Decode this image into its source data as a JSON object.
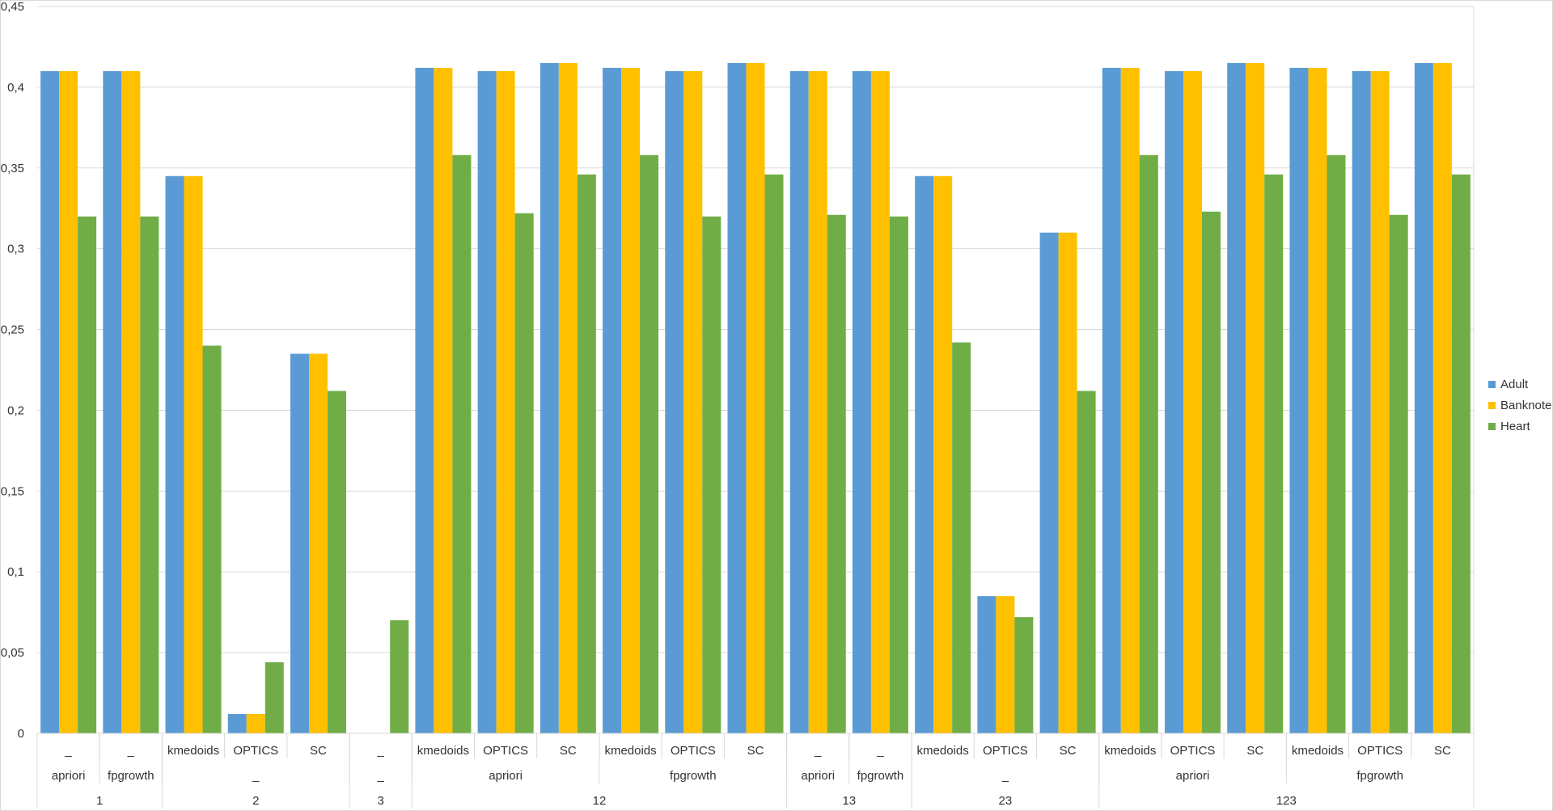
{
  "colors": {
    "Adult": "#5b9bd5",
    "Banknote": "#ffc000",
    "Heart": "#70ad47",
    "grid": "#d9d9d9",
    "text": "#333333"
  },
  "chart_data": {
    "type": "bar",
    "ylim": [
      0,
      0.45
    ],
    "y_ticks": [
      "0",
      "0,05",
      "0,1",
      "0,15",
      "0,2",
      "0,25",
      "0,3",
      "0,35",
      "0,4",
      "0,45"
    ],
    "grid": true,
    "legend_position": "right",
    "categories": [
      "1 | apriori | _",
      "1 | fpgrowth | _",
      "2 | _ | kmedoids",
      "2 | _ | OPTICS",
      "2 | _ | SC",
      "3 | _ | _",
      "12 | apriori | kmedoids",
      "12 | apriori | OPTICS",
      "12 | apriori | SC",
      "12 | fpgrowth | kmedoids",
      "12 | fpgrowth | OPTICS",
      "12 | fpgrowth | SC",
      "13 | apriori | _",
      "13 | fpgrowth | _",
      "23 | _ | kmedoids",
      "23 | _ | OPTICS",
      "23 | _ | SC",
      "123 | apriori | kmedoids",
      "123 | apriori | OPTICS",
      "123 | apriori | SC",
      "123 | fpgrowth | kmedoids",
      "123 | fpgrowth | OPTICS",
      "123 | fpgrowth | SC"
    ],
    "level1_labels": [
      "_",
      "_",
      "kmedoids",
      "OPTICS",
      "SC",
      "_",
      "kmedoids",
      "OPTICS",
      "SC",
      "kmedoids",
      "OPTICS",
      "SC",
      "_",
      "_",
      "kmedoids",
      "OPTICS",
      "SC",
      "kmedoids",
      "OPTICS",
      "SC",
      "kmedoids",
      "OPTICS",
      "SC"
    ],
    "level2_groups": [
      {
        "label": "apriori",
        "start": 0,
        "end": 0
      },
      {
        "label": "fpgrowth",
        "start": 1,
        "end": 1
      },
      {
        "label": "_",
        "start": 2,
        "end": 4
      },
      {
        "label": "_",
        "start": 5,
        "end": 5
      },
      {
        "label": "apriori",
        "start": 6,
        "end": 8
      },
      {
        "label": "fpgrowth",
        "start": 9,
        "end": 11
      },
      {
        "label": "apriori",
        "start": 12,
        "end": 12
      },
      {
        "label": "fpgrowth",
        "start": 13,
        "end": 13
      },
      {
        "label": "_",
        "start": 14,
        "end": 16
      },
      {
        "label": "apriori",
        "start": 17,
        "end": 19
      },
      {
        "label": "fpgrowth",
        "start": 20,
        "end": 22
      }
    ],
    "level3_groups": [
      {
        "label": "1",
        "start": 0,
        "end": 1
      },
      {
        "label": "2",
        "start": 2,
        "end": 4
      },
      {
        "label": "3",
        "start": 5,
        "end": 5
      },
      {
        "label": "12",
        "start": 6,
        "end": 11
      },
      {
        "label": "13",
        "start": 12,
        "end": 13
      },
      {
        "label": "23",
        "start": 14,
        "end": 16
      },
      {
        "label": "123",
        "start": 17,
        "end": 22
      }
    ],
    "series": [
      {
        "name": "Adult",
        "values": [
          0.41,
          0.41,
          0.345,
          0.012,
          0.235,
          0,
          0.412,
          0.41,
          0.415,
          0.412,
          0.41,
          0.415,
          0.41,
          0.41,
          0.345,
          0.085,
          0.31,
          0.412,
          0.41,
          0.415,
          0.412,
          0.41,
          0.415
        ]
      },
      {
        "name": "Banknote",
        "values": [
          0.41,
          0.41,
          0.345,
          0.012,
          0.235,
          0,
          0.412,
          0.41,
          0.415,
          0.412,
          0.41,
          0.415,
          0.41,
          0.41,
          0.345,
          0.085,
          0.31,
          0.412,
          0.41,
          0.415,
          0.412,
          0.41,
          0.415
        ]
      },
      {
        "name": "Heart",
        "values": [
          0.32,
          0.32,
          0.24,
          0.044,
          0.212,
          0.07,
          0.358,
          0.322,
          0.346,
          0.358,
          0.32,
          0.346,
          0.321,
          0.32,
          0.242,
          0.072,
          0.212,
          0.358,
          0.323,
          0.346,
          0.358,
          0.321,
          0.346
        ]
      }
    ]
  }
}
